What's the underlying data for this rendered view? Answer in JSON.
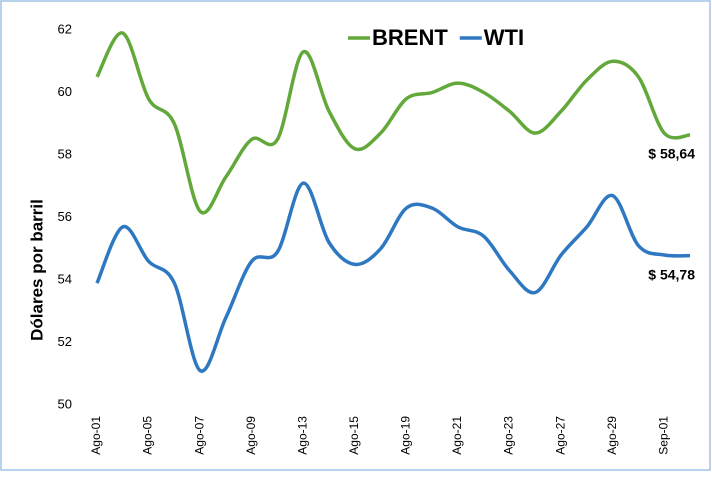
{
  "chart_data": {
    "type": "line",
    "y_label": "Dólares por barril",
    "categories": [
      "Ago-01",
      null,
      "Ago-05",
      null,
      "Ago-07",
      null,
      "Ago-09",
      null,
      "Ago-13",
      null,
      "Ago-15",
      null,
      "Ago-19",
      null,
      "Ago-21",
      null,
      "Ago-23",
      null,
      "Ago-27",
      null,
      "Ago-29",
      null,
      "Sep-01",
      null
    ],
    "series": [
      {
        "name": "BRENT",
        "color": "#62a83a",
        "values": [
          60.5,
          61.9,
          59.8,
          59.0,
          56.2,
          57.3,
          58.5,
          58.5,
          61.3,
          59.4,
          58.2,
          58.7,
          59.8,
          60.0,
          60.3,
          60.0,
          59.4,
          58.7,
          59.4,
          60.4,
          61.0,
          60.5,
          58.7,
          58.64
        ],
        "value_labels": [
          null,
          null,
          null,
          null,
          null,
          null,
          null,
          null,
          null,
          null,
          null,
          null,
          null,
          null,
          null,
          null,
          null,
          null,
          null,
          null,
          null,
          null,
          null,
          "$ 58,64"
        ]
      },
      {
        "name": "WTI",
        "color": "#2e78c2",
        "values": [
          53.9,
          55.7,
          54.6,
          53.9,
          51.1,
          52.8,
          54.6,
          54.9,
          57.1,
          55.2,
          54.5,
          55.0,
          56.3,
          56.3,
          55.7,
          55.4,
          54.3,
          53.6,
          54.8,
          55.7,
          56.7,
          55.1,
          54.8,
          54.78
        ],
        "value_labels": [
          null,
          null,
          null,
          null,
          null,
          null,
          null,
          null,
          null,
          null,
          null,
          null,
          null,
          null,
          null,
          null,
          null,
          null,
          null,
          null,
          null,
          null,
          null,
          "$ 54,78"
        ]
      }
    ],
    "ylim": [
      50,
      62
    ],
    "yticks": [
      50,
      52,
      54,
      56,
      58,
      60,
      62
    ],
    "grid": false,
    "legend": "top"
  }
}
